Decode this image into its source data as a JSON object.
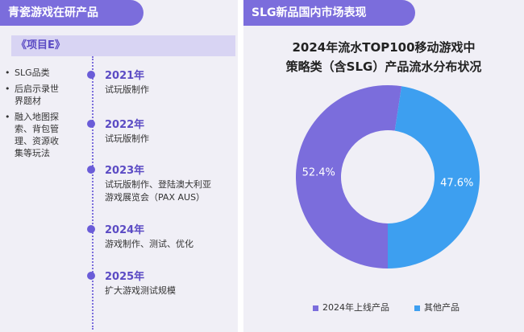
{
  "left": {
    "header": "青瓷游戏在研产品",
    "project": "《项目E》",
    "bullets": [
      {
        "line1": "SLG品类"
      },
      {
        "line1": "后启示录世",
        "line2": "界题材"
      },
      {
        "line1": "融入地图探",
        "line2": "索、背包管",
        "line3": "理、资源收",
        "line4": "集等玩法"
      }
    ],
    "timeline": [
      {
        "year": "2021年",
        "desc1": "试玩版制作"
      },
      {
        "year": "2022年",
        "desc1": "试玩版制作"
      },
      {
        "year": "2023年",
        "desc1": "试玩版制作、登陆澳大利亚",
        "desc2": "游戏展览会（PAX AUS）"
      },
      {
        "year": "2024年",
        "desc1": "游戏制作、测试、优化"
      },
      {
        "year": "2025年",
        "desc1": "扩大游戏测试规模"
      }
    ]
  },
  "right": {
    "header": "SLG新品国内市场表现"
  },
  "chart_data": {
    "type": "pie",
    "title_line1": "2024年流水TOP100移动游戏中",
    "title_line2": "策略类（含SLG）产品流水分布状况",
    "slices": [
      {
        "label": "2024年上线产品",
        "value": 52.4,
        "value_label": "52.4%",
        "color": "#7b6ddc"
      },
      {
        "label": "其他产品",
        "value": 47.6,
        "value_label": "47.6%",
        "color": "#3d9ff0"
      }
    ],
    "legend_position": "bottom"
  },
  "colors": {
    "accent": "#7b6ddc",
    "accent_dark": "#5b4bc4",
    "blue": "#3d9ff0",
    "panel_bg": "#f0eff6"
  }
}
